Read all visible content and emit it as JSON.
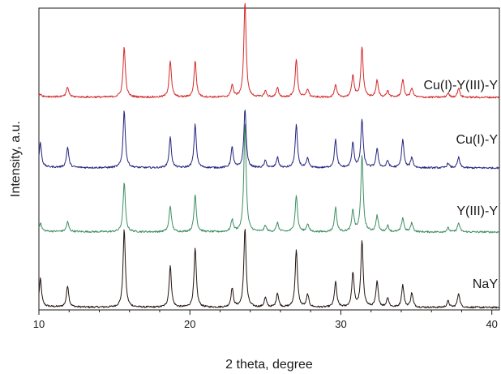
{
  "chart_data": {
    "type": "line",
    "xlabel": "2 theta, degree",
    "ylabel": "Intensity, a.u.",
    "xlim": [
      10,
      40.5
    ],
    "x_ticks": [
      10,
      20,
      30,
      40
    ],
    "tick_labels": [
      "10",
      "20",
      "30",
      "40"
    ],
    "grid": false,
    "legend": "none",
    "peaks": [
      {
        "x": 10.1,
        "rel": 0.35
      },
      {
        "x": 11.9,
        "rel": 0.27
      },
      {
        "x": 15.65,
        "rel": 0.98
      },
      {
        "x": 18.7,
        "rel": 0.52
      },
      {
        "x": 20.35,
        "rel": 0.74
      },
      {
        "x": 22.8,
        "rel": 0.24
      },
      {
        "x": 23.65,
        "rel": 1.0
      },
      {
        "x": 25.0,
        "rel": 0.12
      },
      {
        "x": 25.8,
        "rel": 0.18
      },
      {
        "x": 27.05,
        "rel": 0.73
      },
      {
        "x": 27.8,
        "rel": 0.16
      },
      {
        "x": 29.65,
        "rel": 0.32
      },
      {
        "x": 30.8,
        "rel": 0.43
      },
      {
        "x": 31.4,
        "rel": 0.83
      },
      {
        "x": 32.4,
        "rel": 0.32
      },
      {
        "x": 33.1,
        "rel": 0.12
      },
      {
        "x": 34.1,
        "rel": 0.28
      },
      {
        "x": 34.7,
        "rel": 0.18
      },
      {
        "x": 37.1,
        "rel": 0.08
      },
      {
        "x": 37.8,
        "rel": 0.18
      }
    ],
    "series": [
      {
        "name": "NaY",
        "color": "#231410",
        "scale": 1.0,
        "overrides": {}
      },
      {
        "name": "Y(III)-Y",
        "color": "#3f8f63",
        "scale": 0.62,
        "overrides": {
          "10.1": 0.1,
          "11.9": 0.12,
          "23.65": 1.35,
          "29.65": 0.3,
          "31.4": 0.95
        }
      },
      {
        "name": "Cu(I)-Y",
        "color": "#252580",
        "scale": 0.72,
        "overrides": {
          "10.1": 0.3,
          "11.9": 0.25,
          "22.8": 0.25,
          "29.65": 0.35,
          "34.1": 0.35
        }
      },
      {
        "name": "Cu(I)-Y(III)-Y",
        "color": "#d42a2a",
        "scale": 0.64,
        "overrides": {
          "10.1": 0.03,
          "11.9": 0.12,
          "15.65": 0.62,
          "18.7": 0.45,
          "20.35": 0.45,
          "23.65": 1.18,
          "29.65": 0.15,
          "31.4": 0.62,
          "34.1": 0.22
        }
      }
    ]
  }
}
